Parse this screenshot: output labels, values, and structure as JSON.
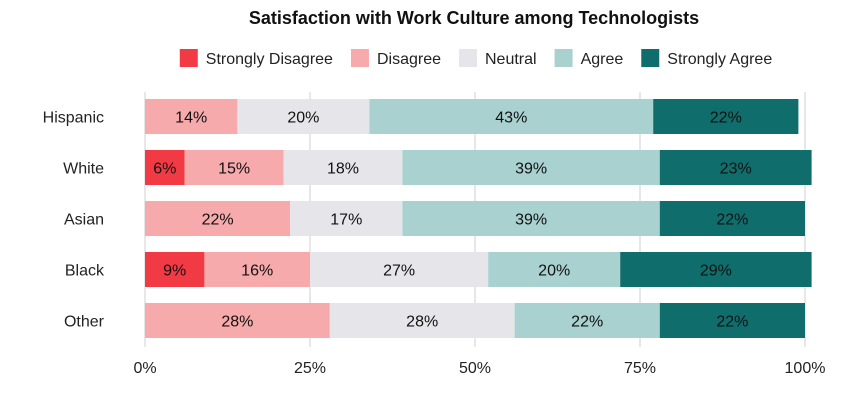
{
  "chart_data": {
    "type": "bar",
    "orientation": "horizontal",
    "stacked": true,
    "title": "Satisfaction with Work Culture among Technologists",
    "categories": [
      "Hispanic",
      "White",
      "Asian",
      "Black",
      "Other"
    ],
    "series": [
      {
        "name": "Strongly Disagree",
        "color": "#f23a45",
        "values": [
          0,
          6,
          0,
          9,
          0
        ]
      },
      {
        "name": "Disagree",
        "color": "#f7aaac",
        "values": [
          14,
          15,
          22,
          16,
          28
        ]
      },
      {
        "name": "Neutral",
        "color": "#e6e6ea",
        "values": [
          20,
          18,
          17,
          27,
          28
        ]
      },
      {
        "name": "Agree",
        "color": "#a8d1d0",
        "values": [
          43,
          39,
          39,
          20,
          22
        ]
      },
      {
        "name": "Strongly Agree",
        "color": "#0f6e6b",
        "values": [
          22,
          23,
          22,
          29,
          22
        ]
      }
    ],
    "xlim": [
      0,
      100
    ],
    "xticks": [
      "0%",
      "25%",
      "50%",
      "75%",
      "100%"
    ],
    "value_suffix": "%",
    "grid": true,
    "legend_position": "top"
  }
}
